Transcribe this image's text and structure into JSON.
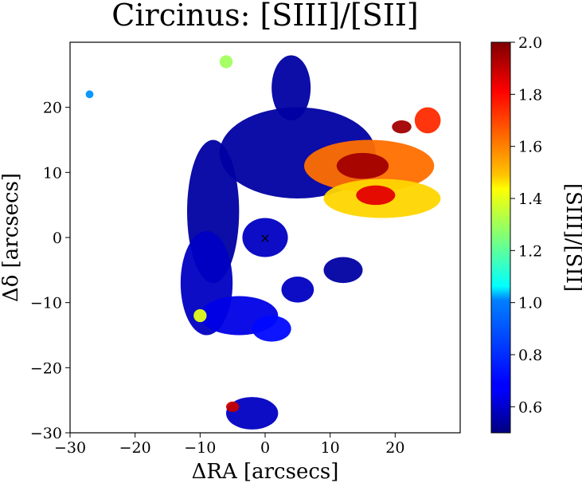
{
  "chart_data": {
    "type": "heatmap",
    "title": "Circinus: [SIII]/[SII]",
    "xlabel": "ΔRA [arcsecs]",
    "ylabel": "Δδ [arcsecs]",
    "xlim": [
      -30,
      30
    ],
    "ylim": [
      -30,
      30
    ],
    "x_ticks": [
      -30,
      -20,
      -10,
      0,
      10,
      20
    ],
    "y_ticks": [
      -30,
      -20,
      -10,
      0,
      10,
      20
    ],
    "x_tick_labels": [
      "−30",
      "−20",
      "−10",
      "0",
      "10",
      "20"
    ],
    "y_tick_labels": [
      "−30",
      "−20",
      "−10",
      "0",
      "10",
      "20"
    ],
    "colorbar": {
      "label": "[SIII]/[SII]",
      "colormap": "jet",
      "range": [
        0.5,
        2.0
      ],
      "ticks": [
        0.6,
        0.8,
        1.0,
        1.2,
        1.4,
        1.6,
        1.8,
        2.0
      ],
      "tick_labels": [
        "0.6",
        "0.8",
        "1.0",
        "1.2",
        "1.4",
        "1.6",
        "1.8",
        "2.0"
      ]
    },
    "nucleus_marker": {
      "x": 0,
      "y": 0,
      "symbol": "×"
    },
    "regions": [
      {
        "name": "nucleus",
        "x": 0,
        "y": 0,
        "rx": 3.5,
        "ry": 3,
        "value": 0.6
      },
      {
        "name": "ne-arc",
        "x": 5,
        "y": 13,
        "rx": 12,
        "ry": 7,
        "value": 0.55
      },
      {
        "name": "arc-west",
        "x": -8,
        "y": 4,
        "rx": 4,
        "ry": 11,
        "value": 0.55
      },
      {
        "name": "arc-west-lower",
        "x": -9,
        "y": -7,
        "rx": 4,
        "ry": 8,
        "value": 0.6
      },
      {
        "name": "arc-south",
        "x": -4,
        "y": -12,
        "rx": 6,
        "ry": 3,
        "value": 0.65
      },
      {
        "name": "arc-south-east",
        "x": 1,
        "y": -14,
        "rx": 3,
        "ry": 2,
        "value": 0.7
      },
      {
        "name": "north-plume",
        "x": 4,
        "y": 23,
        "rx": 3,
        "ry": 5,
        "value": 0.55
      },
      {
        "name": "ne-cone",
        "x": 16,
        "y": 11,
        "rx": 10,
        "ry": 4,
        "value": 1.65
      },
      {
        "name": "ne-cone-core",
        "x": 15,
        "y": 11,
        "rx": 4,
        "ry": 2,
        "value": 1.95
      },
      {
        "name": "e-cone",
        "x": 18,
        "y": 6,
        "rx": 9,
        "ry": 3,
        "value": 1.5
      },
      {
        "name": "e-cone-core",
        "x": 17,
        "y": 6.5,
        "rx": 3,
        "ry": 1.5,
        "value": 1.85
      },
      {
        "name": "ne-knot-1",
        "x": 21,
        "y": 17,
        "rx": 1.5,
        "ry": 1,
        "value": 1.95
      },
      {
        "name": "ne-knot-2",
        "x": 25,
        "y": 18,
        "rx": 2,
        "ry": 2,
        "value": 1.75
      },
      {
        "name": "east-patch",
        "x": 12,
        "y": -5,
        "rx": 3,
        "ry": 2,
        "value": 0.55
      },
      {
        "name": "se-patch",
        "x": 5,
        "y": -8,
        "rx": 2.5,
        "ry": 2,
        "value": 0.6
      },
      {
        "name": "south-blob",
        "x": -2,
        "y": -27,
        "rx": 4,
        "ry": 2.5,
        "value": 0.6
      },
      {
        "name": "south-blob-knot",
        "x": -5,
        "y": -26,
        "rx": 1,
        "ry": 0.8,
        "value": 1.9
      },
      {
        "name": "nw-speck",
        "x": -27,
        "y": 22,
        "rx": 0.6,
        "ry": 0.6,
        "value": 0.9
      },
      {
        "name": "north-speck",
        "x": -6,
        "y": 27,
        "rx": 1,
        "ry": 1,
        "value": 1.3
      },
      {
        "name": "w-knot",
        "x": -10,
        "y": -12,
        "rx": 1,
        "ry": 1,
        "value": 1.4
      }
    ]
  }
}
